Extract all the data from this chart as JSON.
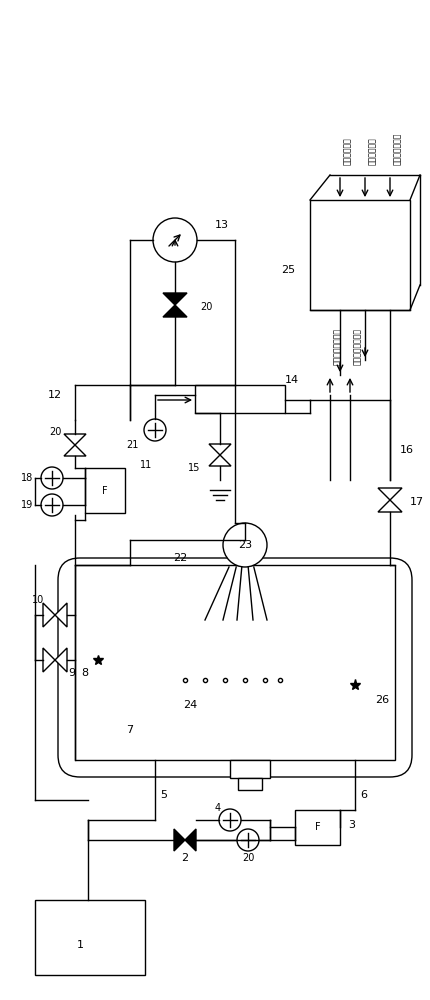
{
  "bg": "#ffffff",
  "lc": "#000000",
  "lw": 1.0,
  "text_outside_temp": "外部温度信号",
  "text_outside_pressure": "外部压力信号",
  "text_outside_flow": "外部流量计信号",
  "text_inside_temp": "安全壳内温度信号",
  "text_inside_pressure": "安全壳内压力信号"
}
